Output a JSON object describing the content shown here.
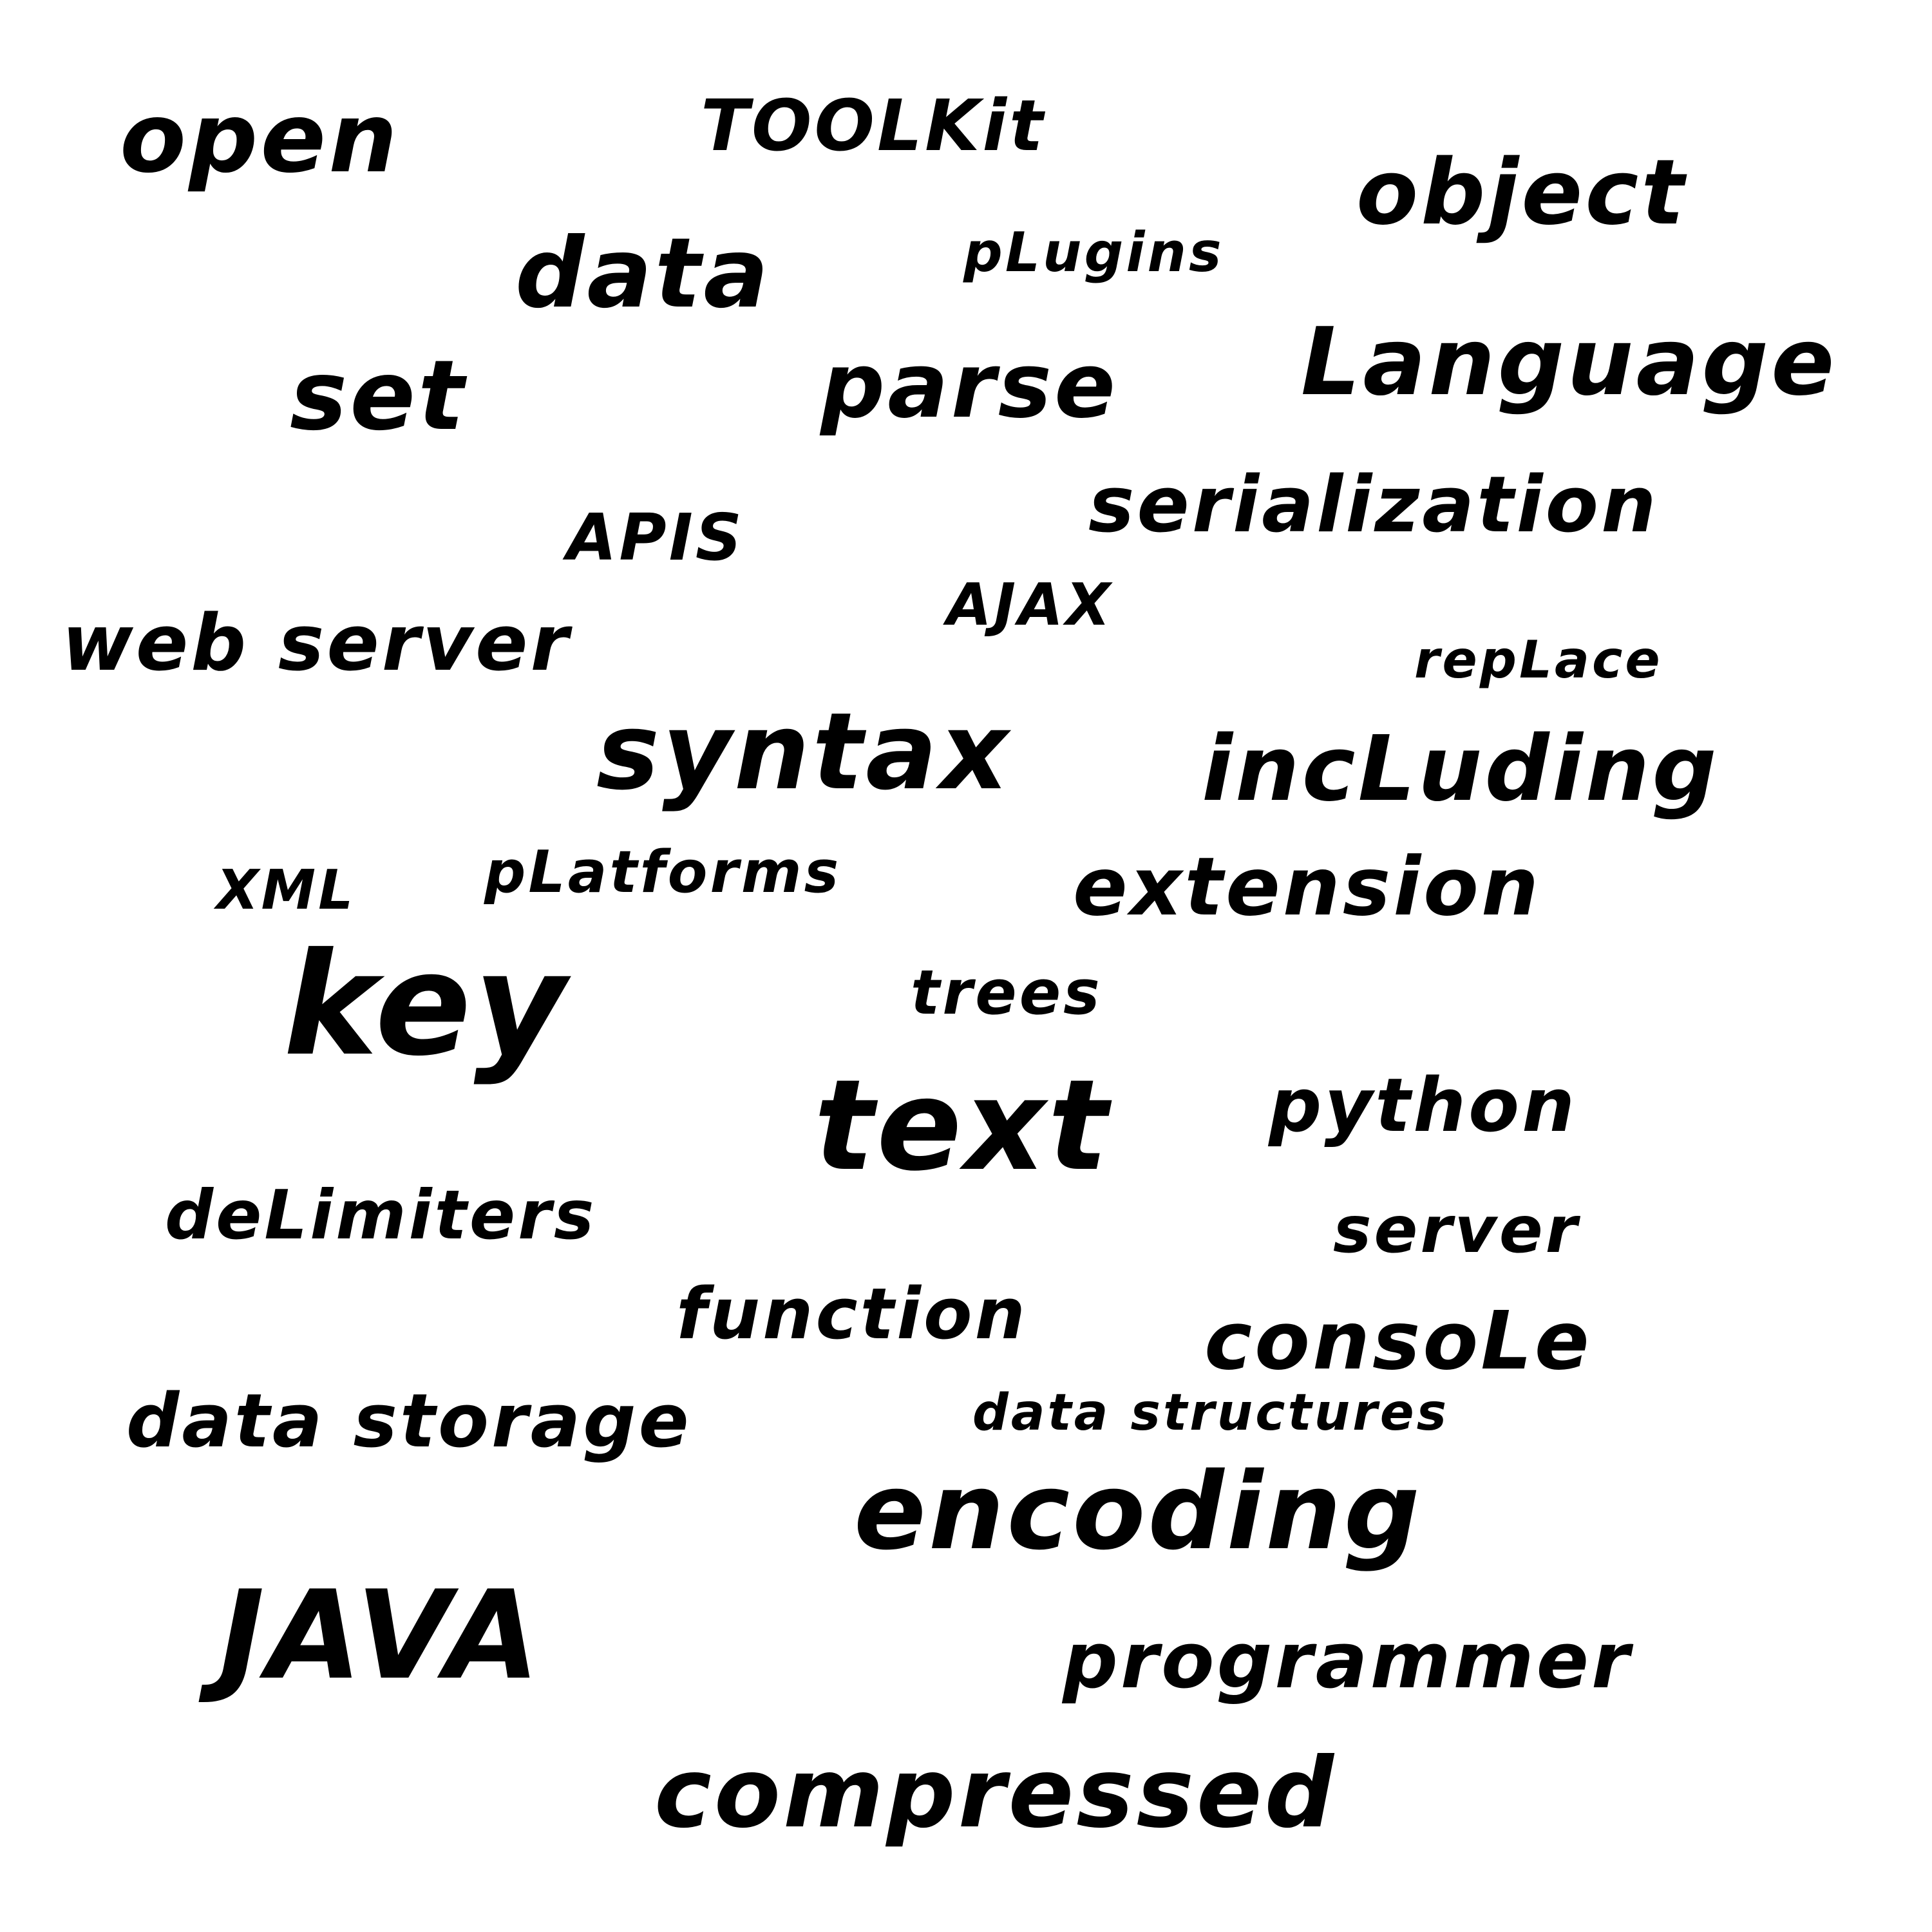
{
  "colors": {
    "background": "#ffffff",
    "text": "#000000"
  },
  "words": [
    {
      "name": "open",
      "text": "open"
    },
    {
      "name": "toolkit",
      "text": "TOOLKit"
    },
    {
      "name": "object",
      "text": "object"
    },
    {
      "name": "plugins",
      "text": "pLugins"
    },
    {
      "name": "data",
      "text": "data"
    },
    {
      "name": "language",
      "text": "Language"
    },
    {
      "name": "set",
      "text": "set"
    },
    {
      "name": "parse",
      "text": "parse"
    },
    {
      "name": "serialization",
      "text": "serialization"
    },
    {
      "name": "apis",
      "text": "APIS"
    },
    {
      "name": "ajax",
      "text": "AJAX"
    },
    {
      "name": "web-server",
      "text": "web server"
    },
    {
      "name": "replace",
      "text": "repLace"
    },
    {
      "name": "syntax",
      "text": "syntax"
    },
    {
      "name": "including",
      "text": "incLuding"
    },
    {
      "name": "xml",
      "text": "XML"
    },
    {
      "name": "platforms",
      "text": "pLatforms"
    },
    {
      "name": "extension",
      "text": "extension"
    },
    {
      "name": "key",
      "text": "key"
    },
    {
      "name": "trees",
      "text": "trees"
    },
    {
      "name": "text",
      "text": "text"
    },
    {
      "name": "python",
      "text": "python"
    },
    {
      "name": "delimiters",
      "text": "deLimiters"
    },
    {
      "name": "server",
      "text": "server"
    },
    {
      "name": "function",
      "text": "function"
    },
    {
      "name": "console",
      "text": "consoLe"
    },
    {
      "name": "data-storage",
      "text": "data storage"
    },
    {
      "name": "data-structures",
      "text": "data structures"
    },
    {
      "name": "encoding",
      "text": "encoding"
    },
    {
      "name": "java",
      "text": "JAVA"
    },
    {
      "name": "programmer",
      "text": "programmer"
    },
    {
      "name": "compressed",
      "text": "compressed"
    }
  ]
}
